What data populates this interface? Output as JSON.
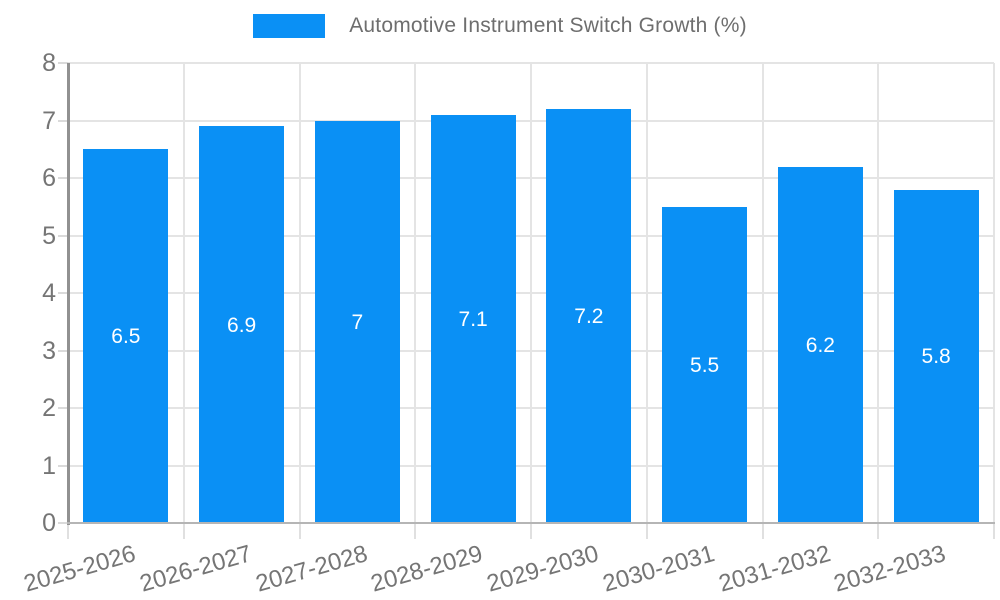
{
  "chart_data": {
    "type": "bar",
    "title": "Automotive Instrument Switch Growth (%)",
    "categories": [
      "2025-2026",
      "2026-2027",
      "2027-2028",
      "2028-2029",
      "2029-2030",
      "2030-2031",
      "2031-2032",
      "2032-2033"
    ],
    "values": [
      6.5,
      6.9,
      7,
      7.1,
      7.2,
      5.5,
      6.2,
      5.8
    ],
    "value_labels": [
      "6.5",
      "6.9",
      "7",
      "7.1",
      "7.2",
      "5.5",
      "6.2",
      "5.8"
    ],
    "ytick_labels": [
      "0",
      "1",
      "2",
      "3",
      "4",
      "5",
      "6",
      "7",
      "8"
    ],
    "xlabel": "",
    "ylabel": "",
    "ylim": [
      0,
      8
    ],
    "ytick_step": 1,
    "grid": "both",
    "legend_position": "top-center",
    "bar_color": "#0a90f5",
    "value_label_color": "#ffffff",
    "axis_text_color": "#757575",
    "legend_text_color": "#6e6e6e",
    "gridline_color": "#e4e4e4",
    "y_axis_line_color": "#919191",
    "x_axis_line_color": "#b5b5b5"
  }
}
